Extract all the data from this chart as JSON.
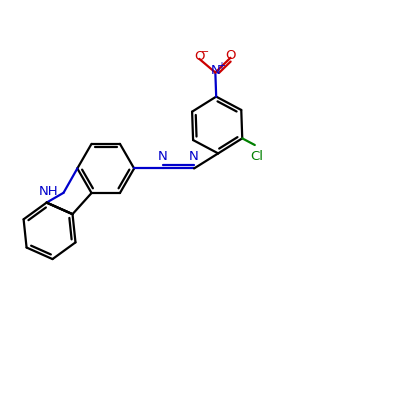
{
  "bg_color": "#ffffff",
  "bond_color": "#000000",
  "N_color": "#0000cc",
  "Cl_color": "#008000",
  "NO2_N_color": "#0000cc",
  "NO2_O_color": "#cc0000",
  "lw": 1.6,
  "dbl_off": 0.09,
  "figsize": [
    4.0,
    4.0
  ],
  "dpi": 100,
  "xlim": [
    0,
    10
  ],
  "ylim": [
    0,
    10
  ],
  "BL": 0.72
}
